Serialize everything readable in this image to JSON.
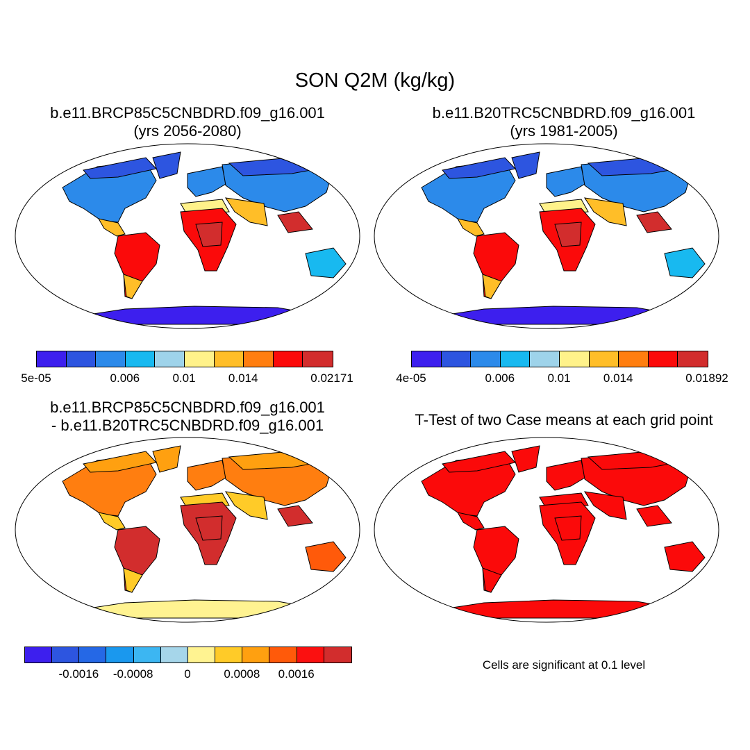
{
  "title": "SON Q2M (kg/kg)",
  "panels": [
    {
      "line1": "b.e11.BRCP85C5CNBDRD.f09_g16.001",
      "line2": "(yrs 2056-2080)"
    },
    {
      "line1": "b.e11.B20TRC5CNBDRD.f09_g16.001",
      "line2": "(yrs 1981-2005)"
    },
    {
      "line1": "b.e11.BRCP85C5CNBDRD.f09_g16.001",
      "line2": "- b.e11.B20TRC5CNBDRD.f09_g16.001"
    },
    {
      "line1": "T-Test of two Case means at each grid point"
    }
  ],
  "colorbars": [
    {
      "colors": [
        "#3d1fee",
        "#2d55e0",
        "#2c8aea",
        "#18b9f0",
        "#9ed3ea",
        "#fff28a",
        "#ffbe28",
        "#ff7e10",
        "#fb0a0a",
        "#d22d2d"
      ],
      "labels": [
        "5e-05",
        "0.006",
        "0.01",
        "0.014",
        "0.02171"
      ],
      "label_boxes": [
        0,
        3,
        5,
        7,
        10
      ]
    },
    {
      "colors": [
        "#3d1fee",
        "#2d55e0",
        "#2c8aea",
        "#18b9f0",
        "#9ed3ea",
        "#fff28a",
        "#ffbe28",
        "#ff7e10",
        "#fb0a0a",
        "#d22d2d"
      ],
      "labels": [
        "4e-05",
        "0.006",
        "0.01",
        "0.014",
        "0.01892"
      ],
      "label_boxes": [
        0,
        3,
        5,
        7,
        10
      ]
    },
    {
      "colors": [
        "#3d1fee",
        "#2d55e0",
        "#2568e6",
        "#1a98ee",
        "#3cb6f2",
        "#a6d6ea",
        "#fff391",
        "#ffcb28",
        "#ffa010",
        "#ff5a0a",
        "#fb1010",
        "#d22d2d"
      ],
      "labels": [
        "-0.0016",
        "-0.0008",
        "0",
        "0.0008",
        "0.0016"
      ],
      "label_boxes": [
        2,
        4,
        6,
        8,
        10
      ]
    }
  ],
  "significance_note": "Cells are significant at 0.1 level",
  "map_palettes": {
    "p1": {
      "ocean": "#ffffff",
      "antarctica": "#3d1fee",
      "highlat": "#2d55e0",
      "midlat": "#2c8aea",
      "subtrop": "#18b9f0",
      "warm": "#ffbe28",
      "hot": "#fb0a0a",
      "hottest": "#d22d2d",
      "dry": "#fff28a"
    },
    "p2": {
      "ocean": "#ffffff",
      "antarctica": "#3d1fee",
      "highlat": "#2d55e0",
      "midlat": "#2c8aea",
      "subtrop": "#18b9f0",
      "warm": "#ffbe28",
      "hot": "#fb0a0a",
      "hottest": "#d22d2d",
      "dry": "#fff28a"
    },
    "p3": {
      "ocean": "#ffffff",
      "antarctica": "#fff391",
      "highlat": "#ffa010",
      "midlat": "#ff7e10",
      "subtrop": "#ff5a0a",
      "warm": "#ffcb28",
      "hot": "#d22d2d",
      "hottest": "#d22d2d",
      "dry": "#ffcb28"
    },
    "p4": {
      "ocean": "#ffffff",
      "antarctica": "#fb0a0a",
      "highlat": "#fb0a0a",
      "midlat": "#fb0a0a",
      "subtrop": "#fb0a0a",
      "warm": "#fb0a0a",
      "hot": "#fb0a0a",
      "hottest": "#fb0a0a",
      "dry": "#fb0a0a"
    }
  }
}
